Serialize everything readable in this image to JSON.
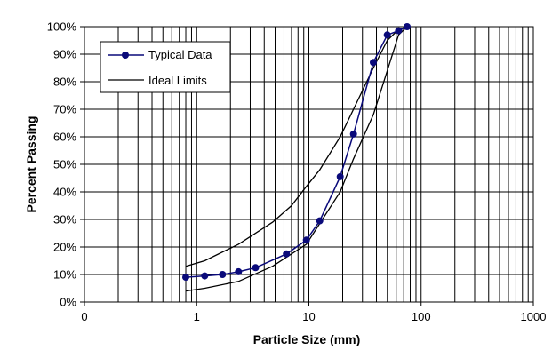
{
  "chart_data": {
    "type": "line",
    "xscale": "log",
    "xlim": [
      0.1,
      1000
    ],
    "ylim": [
      0,
      100
    ],
    "x_tick_labels": [
      "0",
      "1",
      "10",
      "100",
      "1000"
    ],
    "y_tick_labels": [
      "0%",
      "10%",
      "20%",
      "30%",
      "40%",
      "50%",
      "60%",
      "70%",
      "80%",
      "90%",
      "100%"
    ],
    "xlabel": "Particle Size (mm)",
    "ylabel": "Percent Passing",
    "grid": true,
    "legend": {
      "placement": "top-left",
      "entries": [
        "Typical Data",
        "Ideal Limits"
      ]
    },
    "series": [
      {
        "name": "Typical Data",
        "style": "line-with-markers",
        "color": "#0a0a7a",
        "points": [
          [
            0.8,
            9
          ],
          [
            1.18,
            9.5
          ],
          [
            1.7,
            10
          ],
          [
            2.36,
            11
          ],
          [
            3.35,
            12.5
          ],
          [
            6.3,
            17.5
          ],
          [
            9.5,
            22.5
          ],
          [
            12.5,
            29.5
          ],
          [
            19,
            45.5
          ],
          [
            25,
            61
          ],
          [
            37.5,
            87
          ],
          [
            50,
            97
          ],
          [
            63,
            98.5
          ],
          [
            75,
            100
          ]
        ]
      },
      {
        "name": "Ideal Limits",
        "style": "line",
        "color": "#000000",
        "curves": [
          [
            [
              0.8,
              13
            ],
            [
              1.18,
              15
            ],
            [
              2.36,
              21
            ],
            [
              4.75,
              29
            ],
            [
              7,
              35
            ],
            [
              9.5,
              42
            ],
            [
              12.5,
              48
            ],
            [
              19,
              60
            ],
            [
              25,
              70
            ],
            [
              37.5,
              85
            ],
            [
              50,
              95
            ],
            [
              63,
              99
            ],
            [
              75,
              100
            ]
          ],
          [
            [
              0.8,
              4
            ],
            [
              1.18,
              5
            ],
            [
              2.36,
              7.5
            ],
            [
              4.75,
              13
            ],
            [
              9.5,
              21
            ],
            [
              19,
              40
            ],
            [
              25,
              52
            ],
            [
              37.5,
              68
            ],
            [
              50,
              84
            ],
            [
              63,
              97
            ],
            [
              75,
              100
            ]
          ]
        ]
      }
    ]
  }
}
